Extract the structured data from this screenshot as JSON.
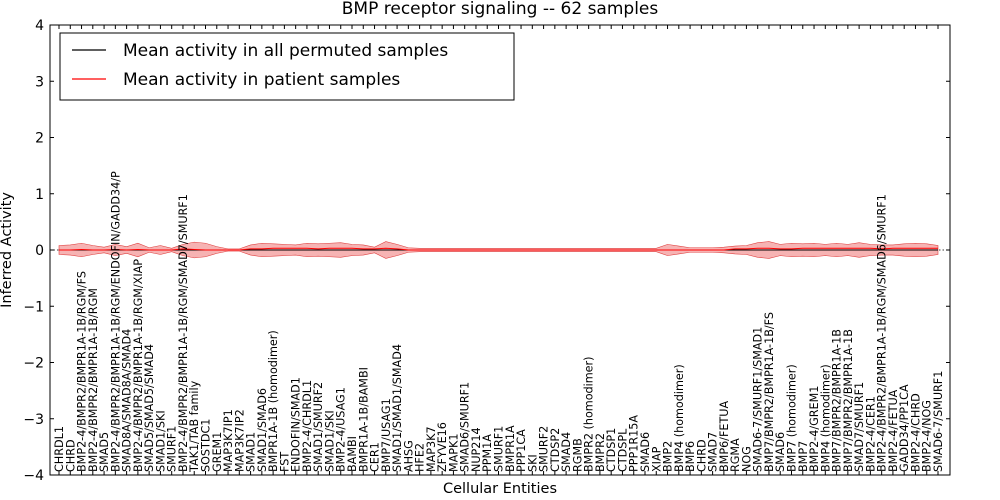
{
  "chart_data": {
    "type": "line",
    "title": "BMP receptor signaling -- 62 samples",
    "xlabel": "Cellular Entities",
    "ylabel": "Inferred Activity",
    "ylim": [
      -4,
      4
    ],
    "yticks": [
      -4,
      -3,
      -2,
      -1,
      0,
      1,
      2,
      3,
      4
    ],
    "ytick_labels": [
      "−4",
      "−3",
      "−2",
      "−1",
      "0",
      "1",
      "2",
      "3",
      "4"
    ],
    "grid": false,
    "legend_position": "top-left",
    "colors": {
      "permuted": "#000000",
      "patient": "#ff0000",
      "band": "#f4a6a6",
      "zero_line": "#000000"
    },
    "categories": [
      "CHRDL1",
      "CHRD",
      "BMP2-4/BMPR2/BMPR1A-1B/RGM/FS",
      "BMP2-4/BMPR2/BMPR1A-1B/RGM",
      "SMAD5",
      "BMP2-4/BMPR2/BMPR1A-1B/RGM/ENDOFIN/GADD34/P",
      "SMAD8A/SMAD8A/SMAD4",
      "BMP2-4/BMPR2/BMPR1A-1B/RGM/XIAP",
      "SMAD5/SMAD5/SMAD4",
      "SMAD1/SKI",
      "SMURF1",
      "BMP2-4/BMPR2/BMPR1A-1B/RGM/SMAD7/SMURF1",
      "TAK1/TAB family",
      "SOSTDC1",
      "GREM1",
      "MAP3K7IP1",
      "MAP3K7IP2",
      "SMAD1",
      "SMAD1/SMAD6",
      "BMPR1A-1B (homodimer)",
      "FST",
      "ENDOFIN/SMAD1",
      "BMP2-4/CHRDL1",
      "SMAD1/SMURF2",
      "SMAD1/SKI",
      "BMP2-4/USAG1",
      "BAMBI",
      "BMPR1A-1B/BAMBI",
      "CER1",
      "BMP7/USAG1",
      "SMAD1/SMAD1/SMAD4",
      "AHSG",
      "HFE2",
      "MAP3K7",
      "ZFYVE16",
      "MAPK1",
      "SMAD6/SMURF1",
      "NUP214",
      "PPM1A",
      "SMURF1",
      "BMPR1A",
      "PPP1CA",
      "SKI",
      "SMURF2",
      "CTDSP2",
      "SMAD4",
      "RGMB",
      "BMPR2 (homodimer)",
      "BMPR2",
      "CTDSP1",
      "CTDSPL",
      "PPP1R15A",
      "SMAD6",
      "XIAP",
      "BMP2",
      "BMP4 (homodimer)",
      "BMP6",
      "CHRD",
      "SMAD7",
      "BMP6/FETUA",
      "RGMA",
      "NOG",
      "SMAD6-7/SMURF1/SMAD1",
      "BMP7/BMPR2/BMPR1A-1B/FS",
      "SMAD6",
      "BMP7 (homodimer)",
      "BMP7",
      "BMP2-4/GREM1",
      "BMP4 (homodimer)",
      "BMP7/BMPR2/BMPR1A-1B",
      "BMP7/BMPR2/BMPR1A-1B",
      "SMAD7/SMURF1",
      "BMP2-4/CER1",
      "BMP2-4/BMPR2/BMPR1A-1B/RGM/SMAD6/SMURF1",
      "BMP2-4/FETUA",
      "GADD34/PP1CA",
      "BMP2-4/CHRD",
      "BMP2-4/NOG",
      "SMAD6-7/SMURF1"
    ],
    "series": [
      {
        "name": "Mean activity in all permuted samples",
        "values": [
          0,
          0,
          0,
          0,
          0,
          0,
          0,
          0,
          0,
          0,
          0,
          0,
          0,
          0,
          0,
          0,
          0,
          0,
          0,
          0,
          0,
          0,
          0,
          0,
          0,
          0,
          0,
          0,
          0,
          0,
          0,
          0,
          0,
          0,
          0,
          0,
          0,
          0,
          0,
          0,
          0,
          0,
          0,
          0,
          0,
          0,
          0,
          0,
          0,
          0,
          0,
          0,
          0,
          0,
          0,
          0,
          0,
          0,
          0,
          0,
          0,
          0,
          0,
          0,
          0,
          0,
          0,
          0,
          0,
          0,
          0,
          0,
          0,
          0,
          0,
          0,
          0,
          0,
          0
        ]
      },
      {
        "name": "Mean activity in patient samples",
        "values": [
          0.0,
          0.0,
          0.01,
          0.0,
          0.0,
          0.01,
          0.0,
          0.01,
          0.0,
          0.0,
          0.0,
          0.02,
          0.01,
          0.0,
          0.0,
          0.0,
          0.0,
          0.02,
          0.02,
          0.03,
          0.03,
          0.03,
          0.03,
          0.02,
          0.03,
          0.03,
          0.03,
          0.02,
          0.02,
          0.03,
          0.02,
          0.0,
          0.0,
          0.0,
          0.0,
          0.0,
          0.0,
          0.0,
          0.0,
          0.0,
          0.0,
          0.0,
          0.0,
          0.0,
          0.0,
          0.0,
          0.0,
          0.0,
          0.0,
          0.0,
          0.0,
          0.0,
          0.0,
          0.0,
          0.0,
          0.0,
          0.0,
          0.0,
          0.0,
          0.0,
          0.02,
          0.02,
          0.03,
          0.03,
          0.02,
          0.02,
          0.03,
          0.03,
          0.03,
          0.03,
          0.03,
          0.03,
          0.03,
          0.02,
          0.03,
          0.03,
          0.03,
          0.03,
          0.03
        ],
        "band_upper": [
          0.08,
          0.09,
          0.12,
          0.08,
          0.05,
          0.1,
          0.06,
          0.12,
          0.04,
          0.08,
          0.03,
          0.1,
          0.14,
          0.12,
          0.06,
          0.02,
          0.02,
          0.09,
          0.12,
          0.11,
          0.1,
          0.09,
          0.12,
          0.11,
          0.12,
          0.13,
          0.1,
          0.09,
          0.05,
          0.15,
          0.1,
          0.04,
          0.03,
          0.03,
          0.03,
          0.03,
          0.03,
          0.03,
          0.03,
          0.03,
          0.03,
          0.03,
          0.03,
          0.03,
          0.03,
          0.03,
          0.03,
          0.03,
          0.03,
          0.03,
          0.03,
          0.03,
          0.03,
          0.03,
          0.1,
          0.07,
          0.04,
          0.04,
          0.04,
          0.05,
          0.07,
          0.08,
          0.13,
          0.15,
          0.1,
          0.12,
          0.11,
          0.12,
          0.1,
          0.12,
          0.1,
          0.13,
          0.1,
          0.09,
          0.09,
          0.11,
          0.12,
          0.11,
          0.08
        ],
        "band_lower": [
          -0.08,
          -0.09,
          -0.12,
          -0.08,
          -0.05,
          -0.1,
          -0.06,
          -0.12,
          -0.04,
          -0.08,
          -0.03,
          -0.1,
          -0.14,
          -0.12,
          -0.06,
          -0.02,
          -0.02,
          -0.09,
          -0.12,
          -0.11,
          -0.1,
          -0.09,
          -0.12,
          -0.11,
          -0.12,
          -0.13,
          -0.1,
          -0.09,
          -0.05,
          -0.15,
          -0.1,
          -0.04,
          -0.03,
          -0.03,
          -0.03,
          -0.03,
          -0.03,
          -0.03,
          -0.03,
          -0.03,
          -0.03,
          -0.03,
          -0.03,
          -0.03,
          -0.03,
          -0.03,
          -0.03,
          -0.03,
          -0.03,
          -0.03,
          -0.03,
          -0.03,
          -0.03,
          -0.03,
          -0.1,
          -0.07,
          -0.04,
          -0.04,
          -0.04,
          -0.05,
          -0.07,
          -0.08,
          -0.13,
          -0.15,
          -0.1,
          -0.12,
          -0.11,
          -0.12,
          -0.1,
          -0.12,
          -0.1,
          -0.13,
          -0.1,
          -0.09,
          -0.09,
          -0.11,
          -0.12,
          -0.11,
          -0.08
        ]
      }
    ]
  }
}
